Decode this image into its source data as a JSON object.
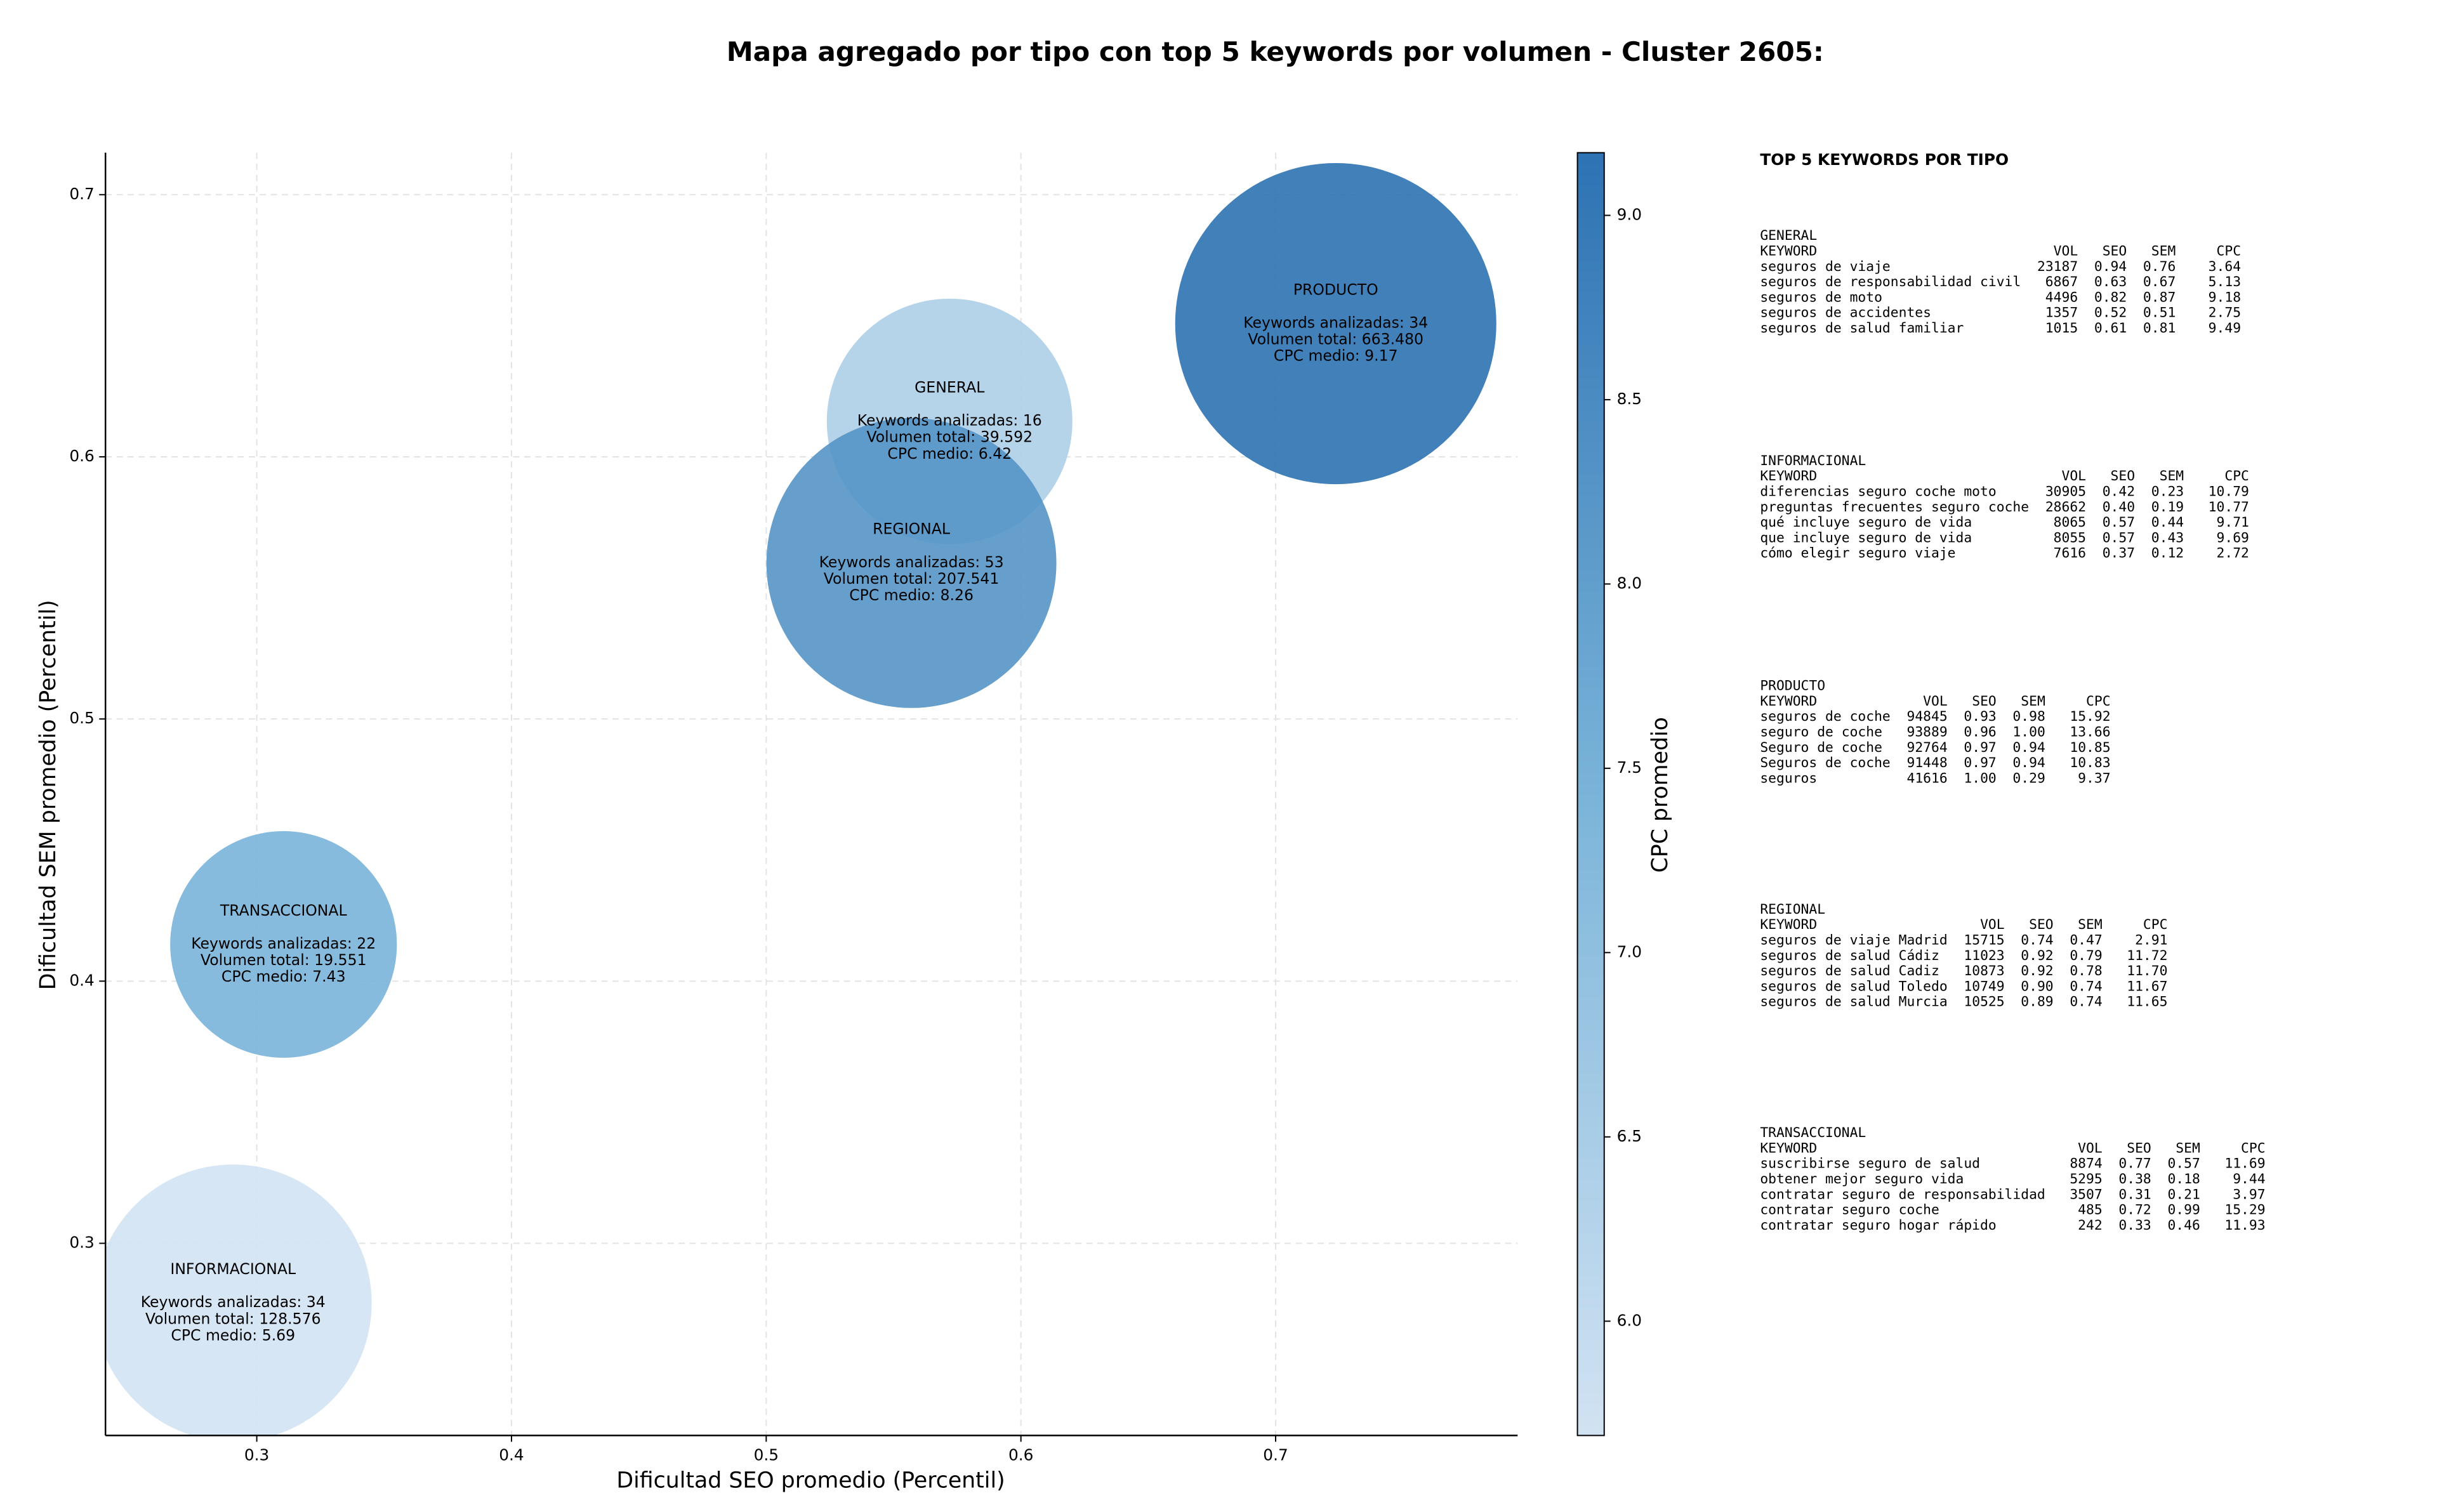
{
  "chart_data": {
    "type": "bubble",
    "title": "Mapa agregado por tipo con top 5 keywords por volumen - Cluster 2605:",
    "x_label": "Dificultad SEO promedio (Percentil)",
    "y_label": "Dificultad SEM promedio (Percentil)",
    "xlim": [
      0.2406,
      0.795
    ],
    "ylim": [
      0.2267,
      0.716
    ],
    "xticks": [
      0.3,
      0.4,
      0.5,
      0.6,
      0.7
    ],
    "yticks": [
      0.3,
      0.4,
      0.5,
      0.6,
      0.7
    ],
    "grid": true,
    "points": [
      {
        "name": "GENERAL",
        "x": 0.572,
        "y": 0.6135,
        "size": 39592,
        "cpc": 6.42,
        "lines": [
          "Keywords analizadas: 16",
          "Volumen total: 39.592",
          "CPC medio: 6.42"
        ]
      },
      {
        "name": "INFORMACIONAL",
        "x": 0.2907,
        "y": 0.2772,
        "size": 128576,
        "cpc": 5.69,
        "lines": [
          "Keywords analizadas: 34",
          "Volumen total: 128.576",
          "CPC medio: 5.69"
        ]
      },
      {
        "name": "PRODUCTO",
        "x": 0.7236,
        "y": 0.6508,
        "size": 663480,
        "cpc": 9.17,
        "lines": [
          "Keywords analizadas: 34",
          "Volumen total: 663.480",
          "CPC medio: 9.17"
        ]
      },
      {
        "name": "REGIONAL",
        "x": 0.557,
        "y": 0.5595,
        "size": 207541,
        "cpc": 8.26,
        "lines": [
          "Keywords analizadas: 53",
          "Volumen total: 207.541",
          "CPC medio: 8.26"
        ]
      },
      {
        "name": "TRANSACCIONAL",
        "x": 0.3105,
        "y": 0.414,
        "size": 19551,
        "cpc": 7.43,
        "lines": [
          "Keywords analizadas: 22",
          "Volumen total: 19.551",
          "CPC medio: 7.43"
        ]
      }
    ],
    "colorbar": {
      "label": "CPC promedio",
      "lim": [
        5.69,
        9.17
      ],
      "ticks": [
        {
          "value": 6,
          "label": "6.0"
        },
        {
          "value": 6.5,
          "label": "6.5"
        },
        {
          "value": 7,
          "label": "7.0"
        },
        {
          "value": 7.5,
          "label": "7.5"
        },
        {
          "value": 8,
          "label": "8.0"
        },
        {
          "value": 8.5,
          "label": "8.5"
        },
        {
          "value": 9,
          "label": "9.0"
        }
      ],
      "colors": [
        "#d2e3f3",
        "#7ab4d9",
        "#2d72b3"
      ]
    }
  },
  "keywords_panel": {
    "title": "TOP 5 KEYWORDS POR TIPO",
    "columns": [
      "KEYWORD",
      "VOL",
      "SEO",
      "SEM",
      "CPC"
    ],
    "sections": [
      {
        "name": "GENERAL",
        "rows": [
          [
            "seguros de viaje",
            "23187",
            "0.94",
            "0.76",
            "3.64"
          ],
          [
            "seguros de responsabilidad civil",
            "6867",
            "0.63",
            "0.67",
            "5.13"
          ],
          [
            "seguros de moto",
            "4496",
            "0.82",
            "0.87",
            "9.18"
          ],
          [
            "seguros de accidentes",
            "1357",
            "0.52",
            "0.51",
            "2.75"
          ],
          [
            "seguros de salud familiar",
            "1015",
            "0.61",
            "0.81",
            "9.49"
          ]
        ]
      },
      {
        "name": "INFORMACIONAL",
        "rows": [
          [
            "diferencias seguro coche moto",
            "30905",
            "0.42",
            "0.23",
            "10.79"
          ],
          [
            "preguntas frecuentes seguro coche",
            "28662",
            "0.40",
            "0.19",
            "10.77"
          ],
          [
            "qué incluye seguro de vida",
            "8065",
            "0.57",
            "0.44",
            "9.71"
          ],
          [
            "que incluye seguro de vida",
            "8055",
            "0.57",
            "0.43",
            "9.69"
          ],
          [
            "cómo elegir seguro viaje",
            "7616",
            "0.37",
            "0.12",
            "2.72"
          ]
        ]
      },
      {
        "name": "PRODUCTO",
        "rows": [
          [
            "seguros de coche",
            "94845",
            "0.93",
            "0.98",
            "15.92"
          ],
          [
            "seguro de coche",
            "93889",
            "0.96",
            "1.00",
            "13.66"
          ],
          [
            "Seguro de coche",
            "92764",
            "0.97",
            "0.94",
            "10.85"
          ],
          [
            "Seguros de coche",
            "91448",
            "0.97",
            "0.94",
            "10.83"
          ],
          [
            "seguros",
            "41616",
            "1.00",
            "0.29",
            "9.37"
          ]
        ]
      },
      {
        "name": "REGIONAL",
        "rows": [
          [
            "seguros de viaje Madrid",
            "15715",
            "0.74",
            "0.47",
            "2.91"
          ],
          [
            "seguros de salud Cádiz",
            "11023",
            "0.92",
            "0.79",
            "11.72"
          ],
          [
            "seguros de salud Cadiz",
            "10873",
            "0.92",
            "0.78",
            "11.70"
          ],
          [
            "seguros de salud Toledo",
            "10749",
            "0.90",
            "0.74",
            "11.67"
          ],
          [
            "seguros de salud Murcia",
            "10525",
            "0.89",
            "0.74",
            "11.65"
          ]
        ]
      },
      {
        "name": "TRANSACCIONAL",
        "rows": [
          [
            "suscribirse seguro de salud",
            "8874",
            "0.77",
            "0.57",
            "11.69"
          ],
          [
            "obtener mejor seguro vida",
            "5295",
            "0.38",
            "0.18",
            "9.44"
          ],
          [
            "contratar seguro de responsabilidad",
            "3507",
            "0.31",
            "0.21",
            "3.97"
          ],
          [
            "contratar seguro coche",
            "485",
            "0.72",
            "0.99",
            "15.29"
          ],
          [
            "contratar seguro hogar rápido",
            "242",
            "0.33",
            "0.46",
            "11.93"
          ]
        ]
      }
    ]
  }
}
